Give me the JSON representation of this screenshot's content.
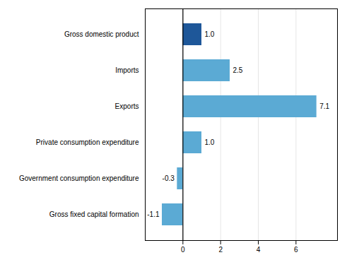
{
  "chart_data": {
    "type": "bar",
    "orientation": "horizontal",
    "categories": [
      "Gross fixed capital formation",
      "Government consumption expenditure",
      "Private consumption expenditure",
      "Exports",
      "Imports",
      "Gross domestic product"
    ],
    "values": [
      -1.1,
      -0.3,
      1.0,
      7.1,
      2.5,
      1.0
    ],
    "value_labels": [
      "-1.1",
      "-0.3",
      "1.0",
      "7.1",
      "2.5",
      "1.0"
    ],
    "colors": [
      "#5baad4",
      "#5baad4",
      "#5baad4",
      "#5baad4",
      "#5baad4",
      "#1e5799"
    ],
    "xlim": [
      -2.0,
      8.2
    ],
    "xticks": [
      0,
      2,
      4,
      6
    ],
    "grid": true,
    "data_labels": true
  }
}
